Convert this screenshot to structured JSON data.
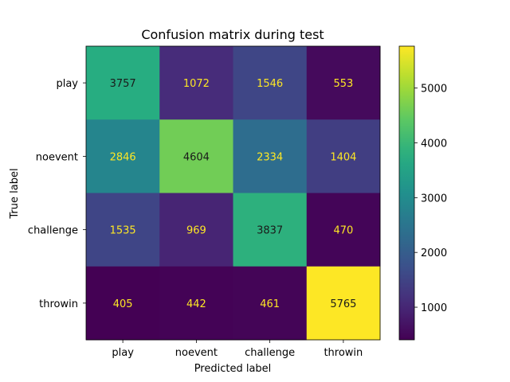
{
  "chart_data": {
    "type": "heatmap",
    "title": "Confusion matrix during test",
    "xlabel": "Predicted label",
    "ylabel": "True label",
    "x_categories": [
      "play",
      "noevent",
      "challenge",
      "throwin"
    ],
    "y_categories": [
      "play",
      "noevent",
      "challenge",
      "throwin"
    ],
    "values": [
      [
        3757,
        1072,
        1546,
        553
      ],
      [
        2846,
        4604,
        2334,
        1404
      ],
      [
        1535,
        969,
        3837,
        470
      ],
      [
        405,
        442,
        461,
        5765
      ]
    ],
    "colormap": "viridis",
    "colorbar": {
      "min": 405,
      "max": 5765,
      "ticks": [
        1000,
        2000,
        3000,
        4000,
        5000
      ]
    },
    "text_colors": {
      "light": "#fde725",
      "dark": "#1a1a1a"
    }
  }
}
